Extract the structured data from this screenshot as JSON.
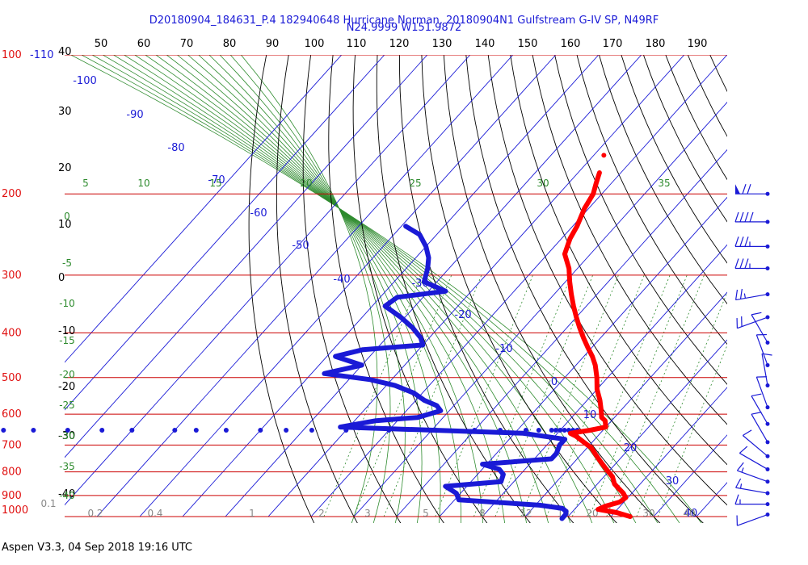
{
  "title_line1": "D20180904_184631_P.4 182940648 Hurricane Norman, 20180904N1 Gulfstream G-IV SP, N49RF",
  "title_line2": "N24.9999 W151.9872",
  "footer": "Aspen V3.3, 04 Sep 2018  19:16 UTC",
  "colors": {
    "pressure_lines": "#cc0000",
    "isotherms": "#1a1ad6",
    "dry_adiabats": "#000000",
    "mixing_ratio": "#2e8b2e",
    "temperature_trace": "#ff0000",
    "dewpoint_trace": "#1a1ad6",
    "wind_barbs": "#1a1ad6"
  },
  "chart_data": {
    "type": "scatter",
    "title": "D20180904_184631_P.4 182940648 Hurricane Norman, 20180904N1 Gulfstream G-IV SP, N49RF",
    "subtitle": "N24.9999 W151.9872",
    "pressure_axis": {
      "labels": [
        "100",
        "200",
        "300",
        "400",
        "500",
        "600",
        "700",
        "800",
        "900",
        "1000"
      ],
      "values": [
        100,
        200,
        300,
        400,
        500,
        600,
        700,
        800,
        900,
        1000
      ],
      "scale": "log"
    },
    "height_labels": [
      "40",
      "30",
      "20",
      "10",
      "0",
      "-10",
      "-20",
      "-30",
      "-40"
    ],
    "top_scale_labels": [
      "50",
      "60",
      "70",
      "80",
      "90",
      "100",
      "110",
      "120",
      "130",
      "140",
      "150",
      "160",
      "170",
      "180",
      "190"
    ],
    "corner_label": "-110",
    "isotherm_labels": [
      "-100",
      "-90",
      "-80",
      "-70",
      "-60",
      "-50",
      "-40",
      "-30",
      "-20",
      "-10",
      "0",
      "10",
      "20",
      "30",
      "40"
    ],
    "mixing_ratio_labels": [
      "0.1",
      "0.2",
      "0.4",
      "1",
      "2",
      "3",
      "5",
      "8",
      "12",
      "16",
      "20",
      "30",
      "40"
    ],
    "theta_e_labels": [
      "5",
      "10",
      "15",
      "20",
      "25",
      "30",
      "35"
    ],
    "theta_labels_left": [
      "0",
      "-5",
      "-10",
      "-15",
      "-20",
      "-25",
      "-30",
      "-35",
      "-40"
    ],
    "series": [
      {
        "name": "Temperature",
        "points": [
          {
            "p": 180,
            "t": -55
          },
          {
            "p": 190,
            "t": -53.5
          },
          {
            "p": 200,
            "t": -52
          },
          {
            "p": 215,
            "t": -51
          },
          {
            "p": 235,
            "t": -49
          },
          {
            "p": 250,
            "t": -48
          },
          {
            "p": 270,
            "t": -46
          },
          {
            "p": 290,
            "t": -42
          },
          {
            "p": 310,
            "t": -39
          },
          {
            "p": 330,
            "t": -36
          },
          {
            "p": 350,
            "t": -33
          },
          {
            "p": 370,
            "t": -30
          },
          {
            "p": 390,
            "t": -27
          },
          {
            "p": 410,
            "t": -24
          },
          {
            "p": 430,
            "t": -21
          },
          {
            "p": 450,
            "t": -18
          },
          {
            "p": 470,
            "t": -15.5
          },
          {
            "p": 500,
            "t": -12.5
          },
          {
            "p": 530,
            "t": -10
          },
          {
            "p": 560,
            "t": -7
          },
          {
            "p": 590,
            "t": -4.5
          },
          {
            "p": 610,
            "t": -3
          },
          {
            "p": 620,
            "t": -1.5
          },
          {
            "p": 640,
            "t": 0
          },
          {
            "p": 650,
            "t": -3
          },
          {
            "p": 660,
            "t": -7
          },
          {
            "p": 670,
            "t": -5
          },
          {
            "p": 690,
            "t": -2
          },
          {
            "p": 710,
            "t": 1
          },
          {
            "p": 730,
            "t": 3
          },
          {
            "p": 760,
            "t": 6
          },
          {
            "p": 790,
            "t": 9
          },
          {
            "p": 820,
            "t": 12
          },
          {
            "p": 850,
            "t": 14
          },
          {
            "p": 870,
            "t": 16
          },
          {
            "p": 890,
            "t": 18
          },
          {
            "p": 910,
            "t": 19.5
          },
          {
            "p": 930,
            "t": 19
          },
          {
            "p": 950,
            "t": 16.5
          },
          {
            "p": 965,
            "t": 15.5
          },
          {
            "p": 980,
            "t": 20.5
          },
          {
            "p": 1000,
            "t": 24.5
          }
        ]
      },
      {
        "name": "Dewpoint",
        "points": [
          {
            "p": 235,
            "t": -89
          },
          {
            "p": 245,
            "t": -84
          },
          {
            "p": 260,
            "t": -80
          },
          {
            "p": 275,
            "t": -77
          },
          {
            "p": 290,
            "t": -75
          },
          {
            "p": 310,
            "t": -73
          },
          {
            "p": 325,
            "t": -66
          },
          {
            "p": 335,
            "t": -76
          },
          {
            "p": 350,
            "t": -77
          },
          {
            "p": 370,
            "t": -71
          },
          {
            "p": 390,
            "t": -66
          },
          {
            "p": 410,
            "t": -62
          },
          {
            "p": 425,
            "t": -60
          },
          {
            "p": 435,
            "t": -73
          },
          {
            "p": 450,
            "t": -78
          },
          {
            "p": 470,
            "t": -70
          },
          {
            "p": 490,
            "t": -77
          },
          {
            "p": 505,
            "t": -65
          },
          {
            "p": 520,
            "t": -58
          },
          {
            "p": 540,
            "t": -52
          },
          {
            "p": 560,
            "t": -48
          },
          {
            "p": 575,
            "t": -44
          },
          {
            "p": 590,
            "t": -42
          },
          {
            "p": 610,
            "t": -46
          },
          {
            "p": 620,
            "t": -55
          },
          {
            "p": 640,
            "t": -62
          },
          {
            "p": 660,
            "t": -18
          },
          {
            "p": 680,
            "t": -7
          },
          {
            "p": 700,
            "t": -7
          },
          {
            "p": 730,
            "t": -6
          },
          {
            "p": 750,
            "t": -6
          },
          {
            "p": 770,
            "t": -21
          },
          {
            "p": 790,
            "t": -16
          },
          {
            "p": 810,
            "t": -14
          },
          {
            "p": 840,
            "t": -13
          },
          {
            "p": 860,
            "t": -25
          },
          {
            "p": 890,
            "t": -21
          },
          {
            "p": 920,
            "t": -19
          },
          {
            "p": 945,
            "t": 1
          },
          {
            "p": 960,
            "t": 7
          },
          {
            "p": 975,
            "t": 8.5
          },
          {
            "p": 990,
            "t": 9
          },
          {
            "p": 1010,
            "t": 9
          }
        ],
        "scatter_row": {
          "p": 650,
          "t": [
            -145,
            -140,
            -133,
            -125,
            -117,
            -110,
            -100,
            -95,
            -88,
            -80,
            -74,
            -68,
            -60,
            -50,
            -40,
            -30,
            -24,
            -18,
            -15,
            -12,
            -11,
            -10,
            -9,
            -8,
            -7,
            -6
          ]
        }
      }
    ],
    "wind_barbs": [
      {
        "p": 200,
        "speed": 70,
        "dir": 270
      },
      {
        "p": 230,
        "speed": 40,
        "dir": 270
      },
      {
        "p": 260,
        "speed": 35,
        "dir": 270
      },
      {
        "p": 290,
        "speed": 35,
        "dir": 270
      },
      {
        "p": 330,
        "speed": 25,
        "dir": 260
      },
      {
        "p": 370,
        "speed": 20,
        "dir": 250
      },
      {
        "p": 420,
        "speed": 10,
        "dir": 330
      },
      {
        "p": 470,
        "speed": 10,
        "dir": 340
      },
      {
        "p": 520,
        "speed": 10,
        "dir": 350
      },
      {
        "p": 580,
        "speed": 10,
        "dir": 340
      },
      {
        "p": 630,
        "speed": 10,
        "dir": 330
      },
      {
        "p": 690,
        "speed": 10,
        "dir": 330
      },
      {
        "p": 740,
        "speed": 10,
        "dir": 310
      },
      {
        "p": 790,
        "speed": 10,
        "dir": 300
      },
      {
        "p": 840,
        "speed": 15,
        "dir": 290
      },
      {
        "p": 890,
        "speed": 15,
        "dir": 280
      },
      {
        "p": 940,
        "speed": 15,
        "dir": 270
      },
      {
        "p": 990,
        "speed": 10,
        "dir": 250
      }
    ]
  }
}
